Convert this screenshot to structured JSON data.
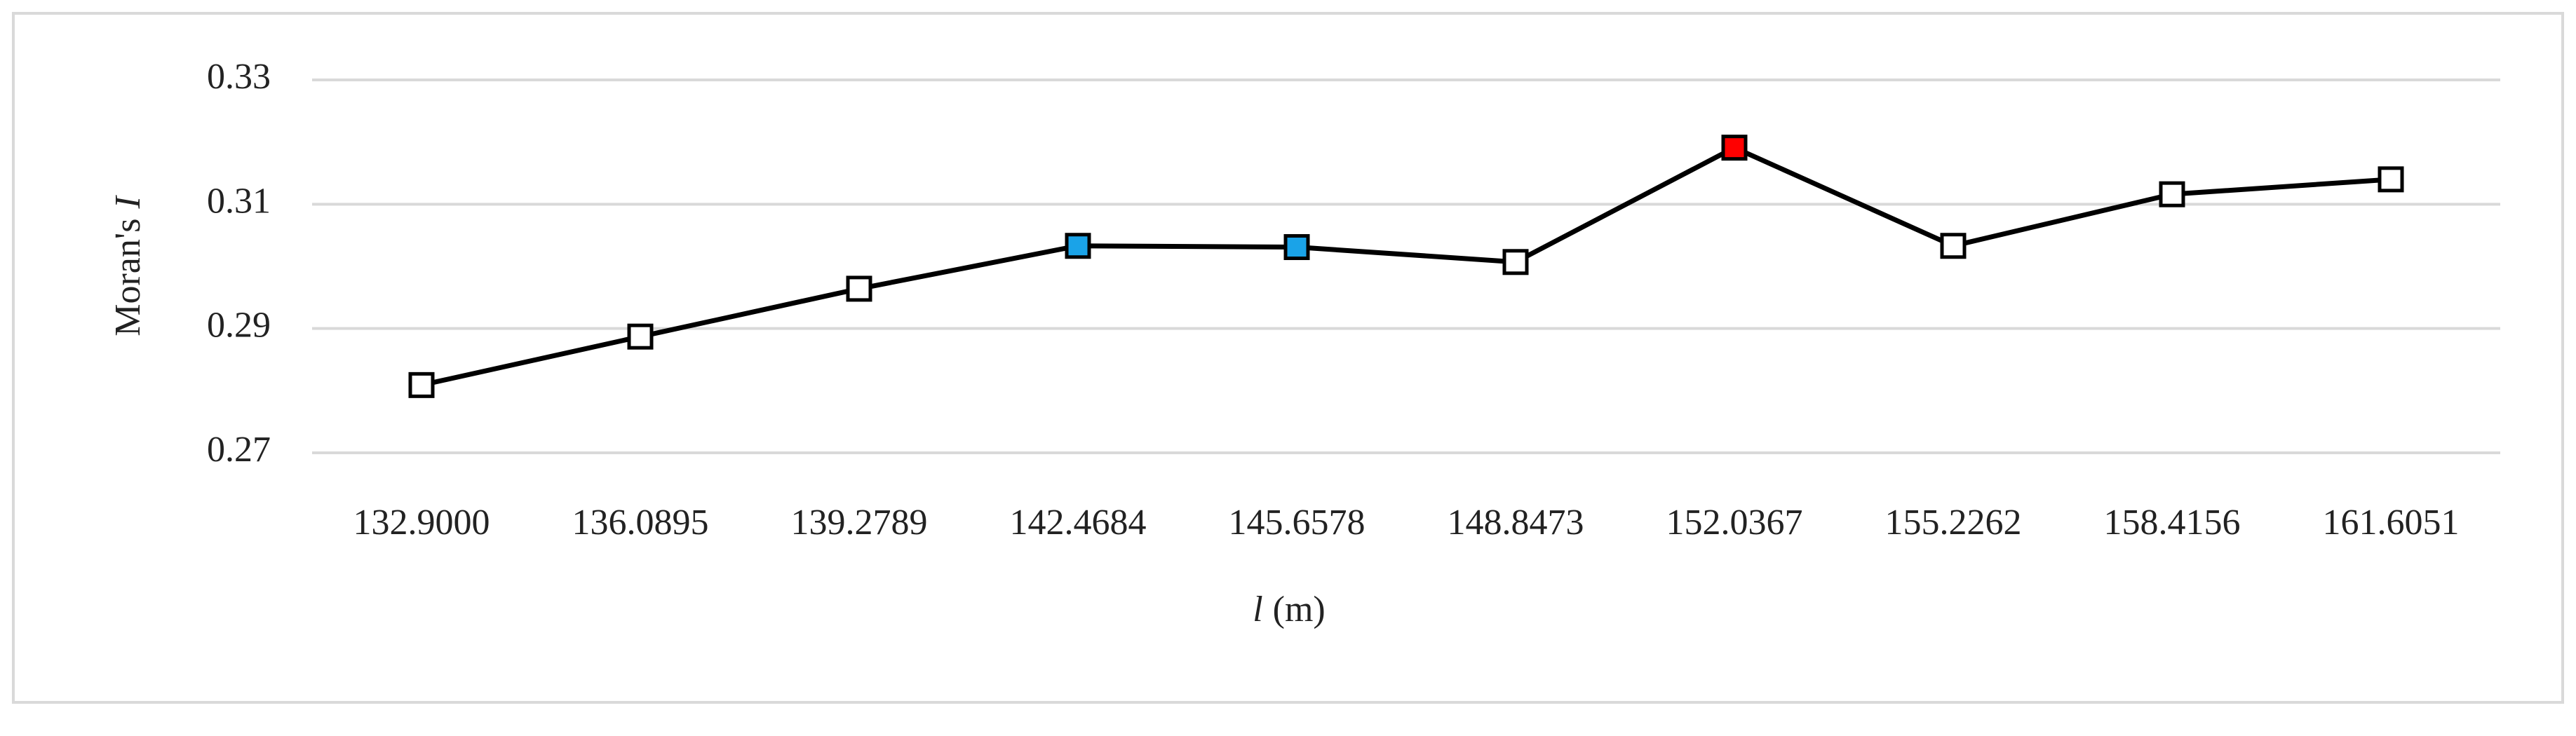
{
  "chart_data": {
    "type": "line",
    "xlabel": [
      "l",
      "(m)"
    ],
    "ylabel": [
      "Moran's",
      "I"
    ],
    "categories": [
      "132.9000",
      "136.0895",
      "139.2789",
      "142.4684",
      "145.6578",
      "148.8473",
      "152.0367",
      "155.2262",
      "158.4156",
      "161.6051"
    ],
    "values": [
      0.2809,
      0.2887,
      0.2964,
      0.3033,
      0.3031,
      0.3007,
      0.3191,
      0.3033,
      0.3116,
      0.314
    ],
    "color": "#000000",
    "marker_colors": [
      "#ffffff",
      "#ffffff",
      "#ffffff",
      "#1aa3e8",
      "#1aa3e8",
      "#ffffff",
      "#ff0000",
      "#ffffff",
      "#ffffff",
      "#ffffff"
    ],
    "ylim": [
      0.27,
      0.33
    ],
    "yticks": [
      0.27,
      0.29,
      0.31,
      0.33
    ],
    "grid": true
  }
}
